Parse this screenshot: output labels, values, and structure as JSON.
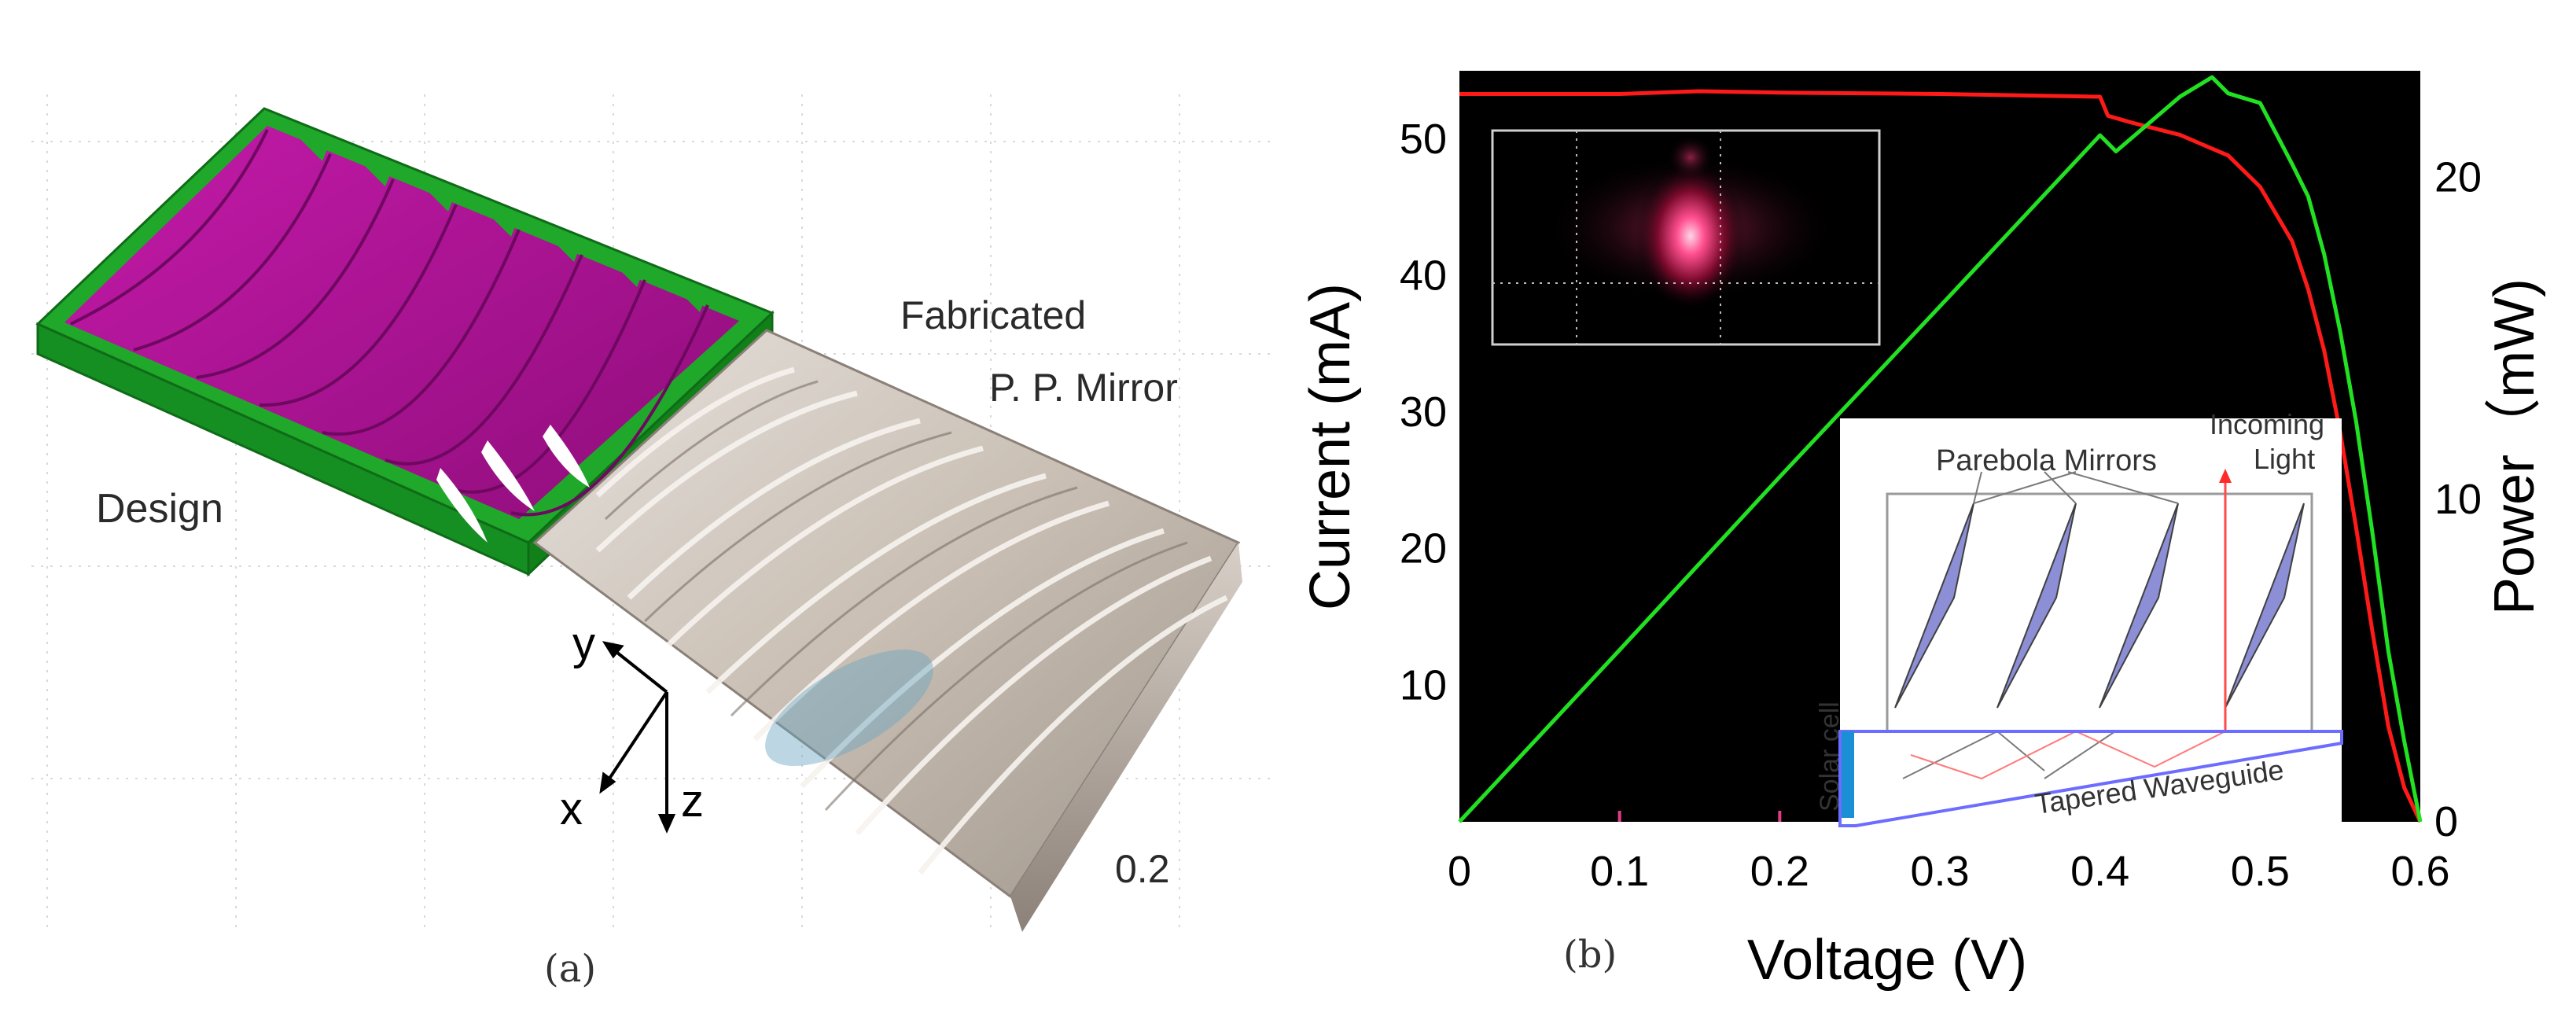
{
  "panel_a": {
    "caption": "(a)",
    "label_design": "Design",
    "label_fabricated_1": "Fabricated",
    "label_fabricated_2": "P. P. Mirror",
    "axis_x": "x",
    "axis_y": "y",
    "axis_z": "z",
    "scale_value": "0.2",
    "colors": {
      "design_face": "#b5179e",
      "design_base": "#1fa82a",
      "mirror": "#cfc6bd"
    }
  },
  "panel_b": {
    "caption": "(b)",
    "inset_labels": {
      "mirrors": "Parebola Mirrors",
      "incoming_1": "Incoming",
      "incoming_2": "Light",
      "solar_cell": "Solar cell",
      "waveguide": "Tapered Waveguide"
    }
  },
  "chart_data": {
    "type": "line",
    "xlabel": "Voltage (V)",
    "ylabel": "Current (mA)",
    "y2label": "Power（mW)",
    "xlim": [
      0,
      0.6
    ],
    "ylim": [
      0,
      55
    ],
    "y2lim": [
      0,
      23.3
    ],
    "x_ticks": [
      0,
      0.1,
      0.2,
      0.3,
      0.4,
      0.5,
      0.6
    ],
    "x_tick_labels": [
      "0",
      "0.1",
      "0.2",
      "0.3",
      "0.4",
      "0.5",
      "0.6"
    ],
    "y_ticks": [
      10,
      20,
      30,
      40,
      50
    ],
    "y_tick_labels": [
      "10",
      "20",
      "30",
      "40",
      "50"
    ],
    "y2_ticks": [
      0,
      10,
      20
    ],
    "y2_tick_labels": [
      "0",
      "10",
      "20"
    ],
    "background": "#000000",
    "series": [
      {
        "name": "Current",
        "axis": "left",
        "color": "#ff1a1a",
        "x": [
          0,
          0.1,
          0.15,
          0.2,
          0.3,
          0.4,
          0.405,
          0.42,
          0.45,
          0.48,
          0.5,
          0.52,
          0.53,
          0.54,
          0.55,
          0.56,
          0.57,
          0.58,
          0.59,
          0.6
        ],
        "y": [
          53.3,
          53.3,
          53.5,
          53.4,
          53.3,
          53.1,
          51.7,
          51.2,
          50.3,
          48.8,
          46.5,
          42.5,
          39.0,
          34.5,
          28.5,
          21.5,
          14.0,
          7.0,
          2.5,
          0
        ]
      },
      {
        "name": "Power",
        "axis": "right",
        "color": "#22e022",
        "x": [
          0,
          0.1,
          0.2,
          0.3,
          0.4,
          0.41,
          0.45,
          0.47,
          0.48,
          0.5,
          0.52,
          0.53,
          0.54,
          0.55,
          0.56,
          0.57,
          0.58,
          0.59,
          0.6
        ],
        "y": [
          0,
          5.33,
          10.7,
          15.99,
          21.3,
          20.8,
          22.5,
          23.1,
          22.6,
          22.3,
          20.4,
          19.4,
          17.6,
          15.2,
          12.4,
          9.0,
          5.3,
          2.5,
          0
        ]
      }
    ]
  }
}
